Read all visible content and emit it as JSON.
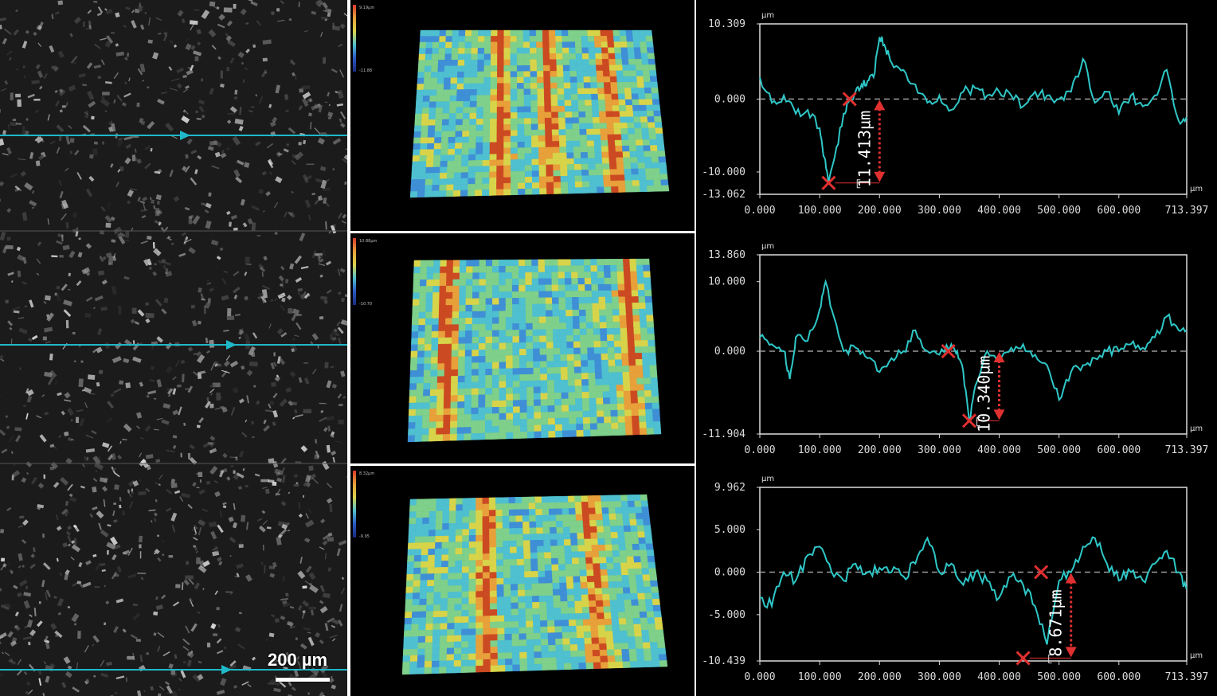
{
  "figure": {
    "scale_bar": {
      "label": "200 µm"
    },
    "colors": {
      "profile_line": "#2fc7c7",
      "marker": "#e03030",
      "scan_line": "#1fb8c8",
      "axis": "#dcdcdc",
      "zero_line": "#9a9a9a"
    },
    "panels": [
      {
        "map_colorbar": {
          "top": "9.19µm",
          "bottom": "-11.88"
        },
        "profile": {
          "y_unit": "µm",
          "x_unit": "µm",
          "y_max_label": "10.309",
          "y_min_label": "-13.062",
          "y_ticks": [
            "10.309",
            "0.000",
            "-10.000",
            "-13.062"
          ],
          "x_ticks": [
            "0.000",
            "100.000",
            "200.000",
            "300.000",
            "400.000",
            "500.000",
            "600.000",
            "713.397"
          ],
          "depth_label": "11.413µm"
        }
      },
      {
        "map_colorbar": {
          "top": "10.88µm",
          "bottom": "-10.70"
        },
        "profile": {
          "y_unit": "µm",
          "x_unit": "µm",
          "y_max_label": "13.860",
          "y_min_label": "-11.904",
          "y_ticks": [
            "13.860",
            "10.000",
            "0.000",
            "-11.904"
          ],
          "x_ticks": [
            "0.000",
            "100.000",
            "200.000",
            "300.000",
            "400.000",
            "500.000",
            "600.000",
            "713.397"
          ],
          "depth_label": "10.340µm"
        }
      },
      {
        "map_colorbar": {
          "top": "8.32µm",
          "bottom": "-9.95"
        },
        "profile": {
          "y_unit": "µm",
          "x_unit": "µm",
          "y_max_label": "9.962",
          "y_min_label": "-10.439",
          "y_ticks": [
            "9.962",
            "5.000",
            "0.000",
            "-5.000",
            "-10.439"
          ],
          "x_ticks": [
            "0.000",
            "100.000",
            "200.000",
            "300.000",
            "400.000",
            "500.000",
            "600.000",
            "713.397"
          ],
          "depth_label": "8.671µm"
        }
      }
    ]
  },
  "chart_data": [
    {
      "type": "line",
      "xlim": [
        0,
        713.397
      ],
      "ylim": [
        -13.062,
        10.309
      ],
      "x": [
        0,
        20,
        40,
        60,
        80,
        100,
        108,
        115,
        125,
        140,
        150,
        160,
        170,
        180,
        190,
        200,
        210,
        220,
        240,
        260,
        280,
        300,
        320,
        340,
        360,
        380,
        400,
        420,
        440,
        460,
        480,
        500,
        520,
        540,
        560,
        580,
        600,
        620,
        640,
        660,
        680,
        700,
        713
      ],
      "y": [
        3,
        -0.5,
        0.5,
        -2,
        -1.5,
        -4,
        -8,
        -11.5,
        -8,
        -2,
        0,
        1,
        2,
        2.5,
        3,
        8.5,
        7,
        5,
        4,
        2,
        -0.5,
        0.5,
        -1.5,
        1,
        1.5,
        0.5,
        1,
        0.5,
        -1,
        1,
        0.5,
        0,
        1,
        5.5,
        -0.5,
        1,
        -2,
        0.5,
        -1,
        0.5,
        4,
        -3,
        -2.5
      ]
    },
    {
      "type": "line",
      "xlim": [
        0,
        713.397
      ],
      "ylim": [
        -11.904,
        13.86
      ],
      "x": [
        0,
        20,
        40,
        50,
        60,
        80,
        100,
        110,
        120,
        140,
        160,
        180,
        200,
        220,
        240,
        260,
        280,
        300,
        320,
        330,
        340,
        350,
        360,
        380,
        400,
        420,
        440,
        460,
        480,
        500,
        520,
        540,
        560,
        580,
        600,
        620,
        640,
        660,
        680,
        700,
        713
      ],
      "y": [
        2,
        1,
        0,
        -4,
        2,
        1.5,
        6,
        10,
        6,
        0,
        0.5,
        -1,
        -3,
        -1,
        0,
        3,
        0,
        -0.5,
        1,
        0,
        -3,
        -10,
        -5,
        0,
        -1,
        0.5,
        1,
        -0.5,
        -2,
        -7,
        -3,
        -2,
        -1,
        0,
        0,
        1,
        0.5,
        2,
        5,
        3,
        3
      ]
    },
    {
      "type": "line",
      "xlim": [
        0,
        713.397
      ],
      "ylim": [
        -10.439,
        9.962
      ],
      "x": [
        0,
        20,
        40,
        60,
        80,
        100,
        120,
        140,
        160,
        180,
        200,
        220,
        240,
        260,
        280,
        300,
        320,
        340,
        360,
        380,
        400,
        420,
        440,
        460,
        480,
        500,
        520,
        540,
        560,
        580,
        600,
        620,
        640,
        660,
        680,
        700,
        713
      ],
      "y": [
        -3,
        -4,
        0,
        -1,
        2,
        3,
        0,
        -1,
        1,
        0,
        0.5,
        0,
        -0.5,
        1,
        4,
        0,
        1,
        -1.5,
        0,
        -1,
        -3,
        -0.5,
        -1.5,
        -4,
        -8.5,
        -1,
        0,
        3,
        4,
        1,
        -1,
        0,
        -1,
        1,
        2.5,
        0,
        -2
      ]
    }
  ]
}
